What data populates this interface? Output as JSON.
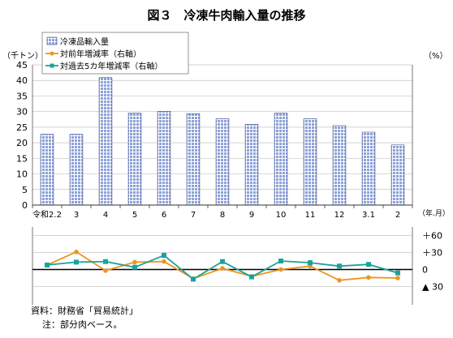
{
  "chart_data": [
    {
      "type": "bar",
      "title": "図３　冷凍牛肉輸入量の推移",
      "ylabel": "（千トン）",
      "y2label": "（%）",
      "xunit": "（年.月）",
      "ylim": [
        0,
        45
      ],
      "yticks": [
        0,
        5,
        10,
        15,
        20,
        25,
        30,
        35,
        40,
        45
      ],
      "grid": true,
      "legend_position": "top-left",
      "categories": [
        "令和2.2",
        "3",
        "4",
        "5",
        "6",
        "7",
        "8",
        "9",
        "10",
        "11",
        "12",
        "3.1",
        "2"
      ],
      "series": [
        {
          "name": "冷凍品輸入量",
          "color": "#8da2d8",
          "values": [
            22.7,
            22.7,
            40.9,
            29.5,
            30.1,
            29.3,
            27.7,
            25.9,
            29.5,
            27.7,
            25.5,
            23.4,
            19.3
          ]
        }
      ]
    },
    {
      "type": "line",
      "ylim": [
        -45,
        75
      ],
      "yticks": [
        {
          "value": 60,
          "label": "＋60"
        },
        {
          "value": 30,
          "label": "＋30"
        },
        {
          "value": 0,
          "label": "0"
        },
        {
          "value": -30,
          "label": "▲ 30"
        }
      ],
      "categories": [
        "令和2.2",
        "3",
        "4",
        "5",
        "6",
        "7",
        "8",
        "9",
        "10",
        "11",
        "12",
        "3.1",
        "2"
      ],
      "series": [
        {
          "name": "対前年増減率（右軸）",
          "color": "#f0941e",
          "marker": "circle",
          "values": [
            8,
            31,
            -2,
            13,
            14,
            -16,
            2,
            -12,
            0,
            6,
            -19,
            -14,
            -15
          ]
        },
        {
          "name": "対過去5カ年増減率（右軸）",
          "color": "#1aa39a",
          "marker": "square",
          "values": [
            8,
            13,
            14,
            4,
            25,
            -17,
            14,
            -13,
            15,
            12,
            6,
            9,
            -6
          ]
        }
      ]
    }
  ],
  "source_note": "資料：財務省「貿易統計」",
  "note": "注：部分肉ベース。"
}
